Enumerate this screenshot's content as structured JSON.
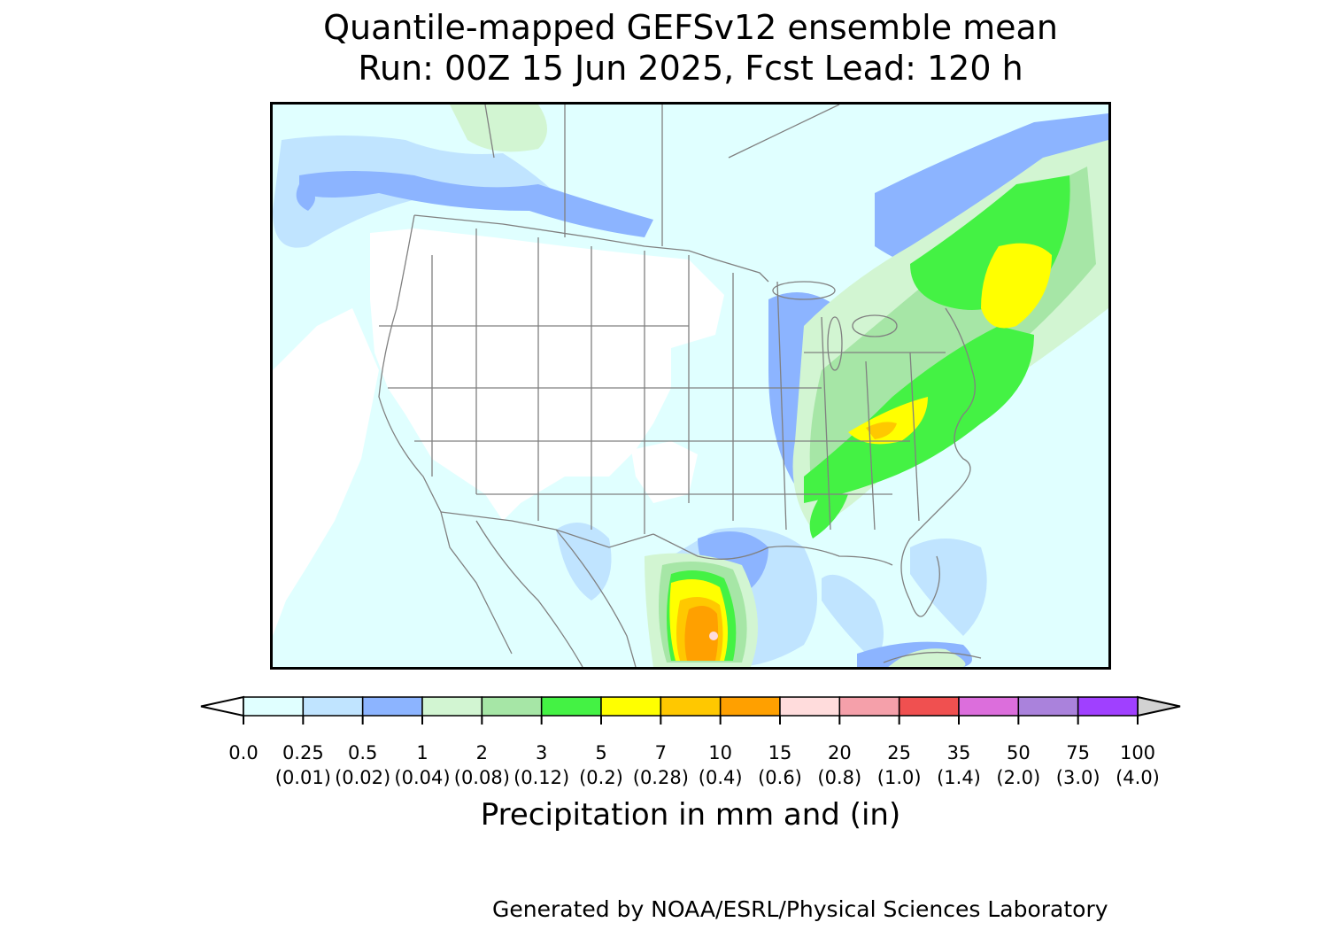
{
  "title": {
    "line1": "Quantile-mapped GEFSv12 ensemble mean",
    "line2": "Run: 00Z 15 Jun 2025, Fcst Lead: 120 h"
  },
  "colorbar": {
    "label": "Precipitation in mm and (in)",
    "extend": "both",
    "levels_mm": [
      "0.0",
      "0.25",
      "0.5",
      "1",
      "2",
      "3",
      "5",
      "7",
      "10",
      "15",
      "20",
      "25",
      "35",
      "50",
      "75",
      "100"
    ],
    "levels_in": [
      "",
      "(0.01)",
      "(0.02)",
      "(0.04)",
      "(0.08)",
      "(0.12)",
      "(0.2)",
      "(0.28)",
      "(0.4)",
      "(0.6)",
      "(0.8)",
      "(1.0)",
      "(1.4)",
      "(2.0)",
      "(3.0)",
      "(4.0)"
    ],
    "colors": [
      "#e0ffff",
      "#c0e4ff",
      "#8cb4ff",
      "#d2f5d2",
      "#a6e6a6",
      "#44f244",
      "#ffff00",
      "#ffc800",
      "#ffa000",
      "#ffdcdc",
      "#f5a0aa",
      "#f05050",
      "#dc6edc",
      "#aa82dc",
      "#a040ff"
    ],
    "under_color": "#ffffff",
    "over_color": "#d2d2d2"
  },
  "map": {
    "region": "contiguous United States",
    "background_color": "#e0ffff",
    "dry_land_color": "#ffffff",
    "boundary_color": "#808080"
  },
  "credit": "Generated by NOAA/ESRL/Physical Sciences Laboratory"
}
